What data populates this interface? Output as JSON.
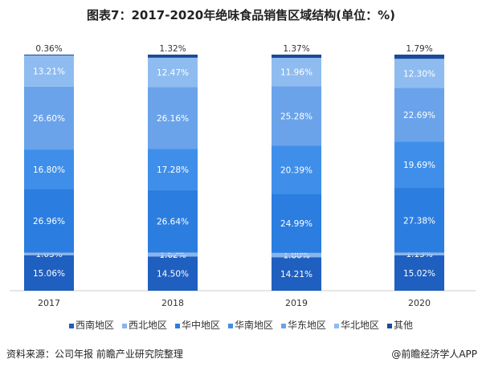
{
  "chart_data": {
    "type": "bar",
    "stacked": true,
    "title": "图表7：2017-2020年绝味食品销售区域结构(单位：%)",
    "categories": [
      "2017",
      "2018",
      "2019",
      "2020"
    ],
    "ylim": [
      0,
      100
    ],
    "grid": false,
    "legend_position": "bottom",
    "series": [
      {
        "name": "西南地区",
        "color": "#1f5fbf",
        "values": [
          15.06,
          14.5,
          14.21,
          15.02
        ],
        "labels": [
          "15.06%",
          "14.50%",
          "14.21%",
          "15.02%"
        ]
      },
      {
        "name": "西北地区",
        "color": "#8ab4ee",
        "values": [
          1.03,
          1.62,
          1.8,
          1.13
        ],
        "labels": [
          "1.03%",
          "1.62%",
          "1.80%",
          "1.13%"
        ]
      },
      {
        "name": "华中地区",
        "color": "#2b7ee0",
        "values": [
          26.96,
          26.64,
          24.99,
          27.38
        ],
        "labels": [
          "26.96%",
          "26.64%",
          "24.99%",
          "27.38%"
        ]
      },
      {
        "name": "华南地区",
        "color": "#3f8fea",
        "values": [
          16.8,
          17.28,
          20.39,
          19.69
        ],
        "labels": [
          "16.80%",
          "17.28%",
          "20.39%",
          "19.69%"
        ]
      },
      {
        "name": "华东地区",
        "color": "#6aa3ea",
        "values": [
          26.6,
          26.16,
          25.28,
          22.69
        ],
        "labels": [
          "26.60%",
          "26.16%",
          "25.28%",
          "22.69%"
        ]
      },
      {
        "name": "华北地区",
        "color": "#8fbcf0",
        "values": [
          13.21,
          12.47,
          11.96,
          12.3
        ],
        "labels": [
          "13.21%",
          "12.47%",
          "11.96%",
          "12.30%"
        ]
      },
      {
        "name": "其他",
        "color": "#1a4a9a",
        "values": [
          0.36,
          1.32,
          1.37,
          1.79
        ],
        "labels": [
          "0.36%",
          "1.32%",
          "1.37%",
          "1.79%"
        ]
      }
    ]
  },
  "footer": {
    "source": "资料来源：公司年报 前瞻产业研究院整理",
    "credit": "@前瞻经济学人APP"
  }
}
